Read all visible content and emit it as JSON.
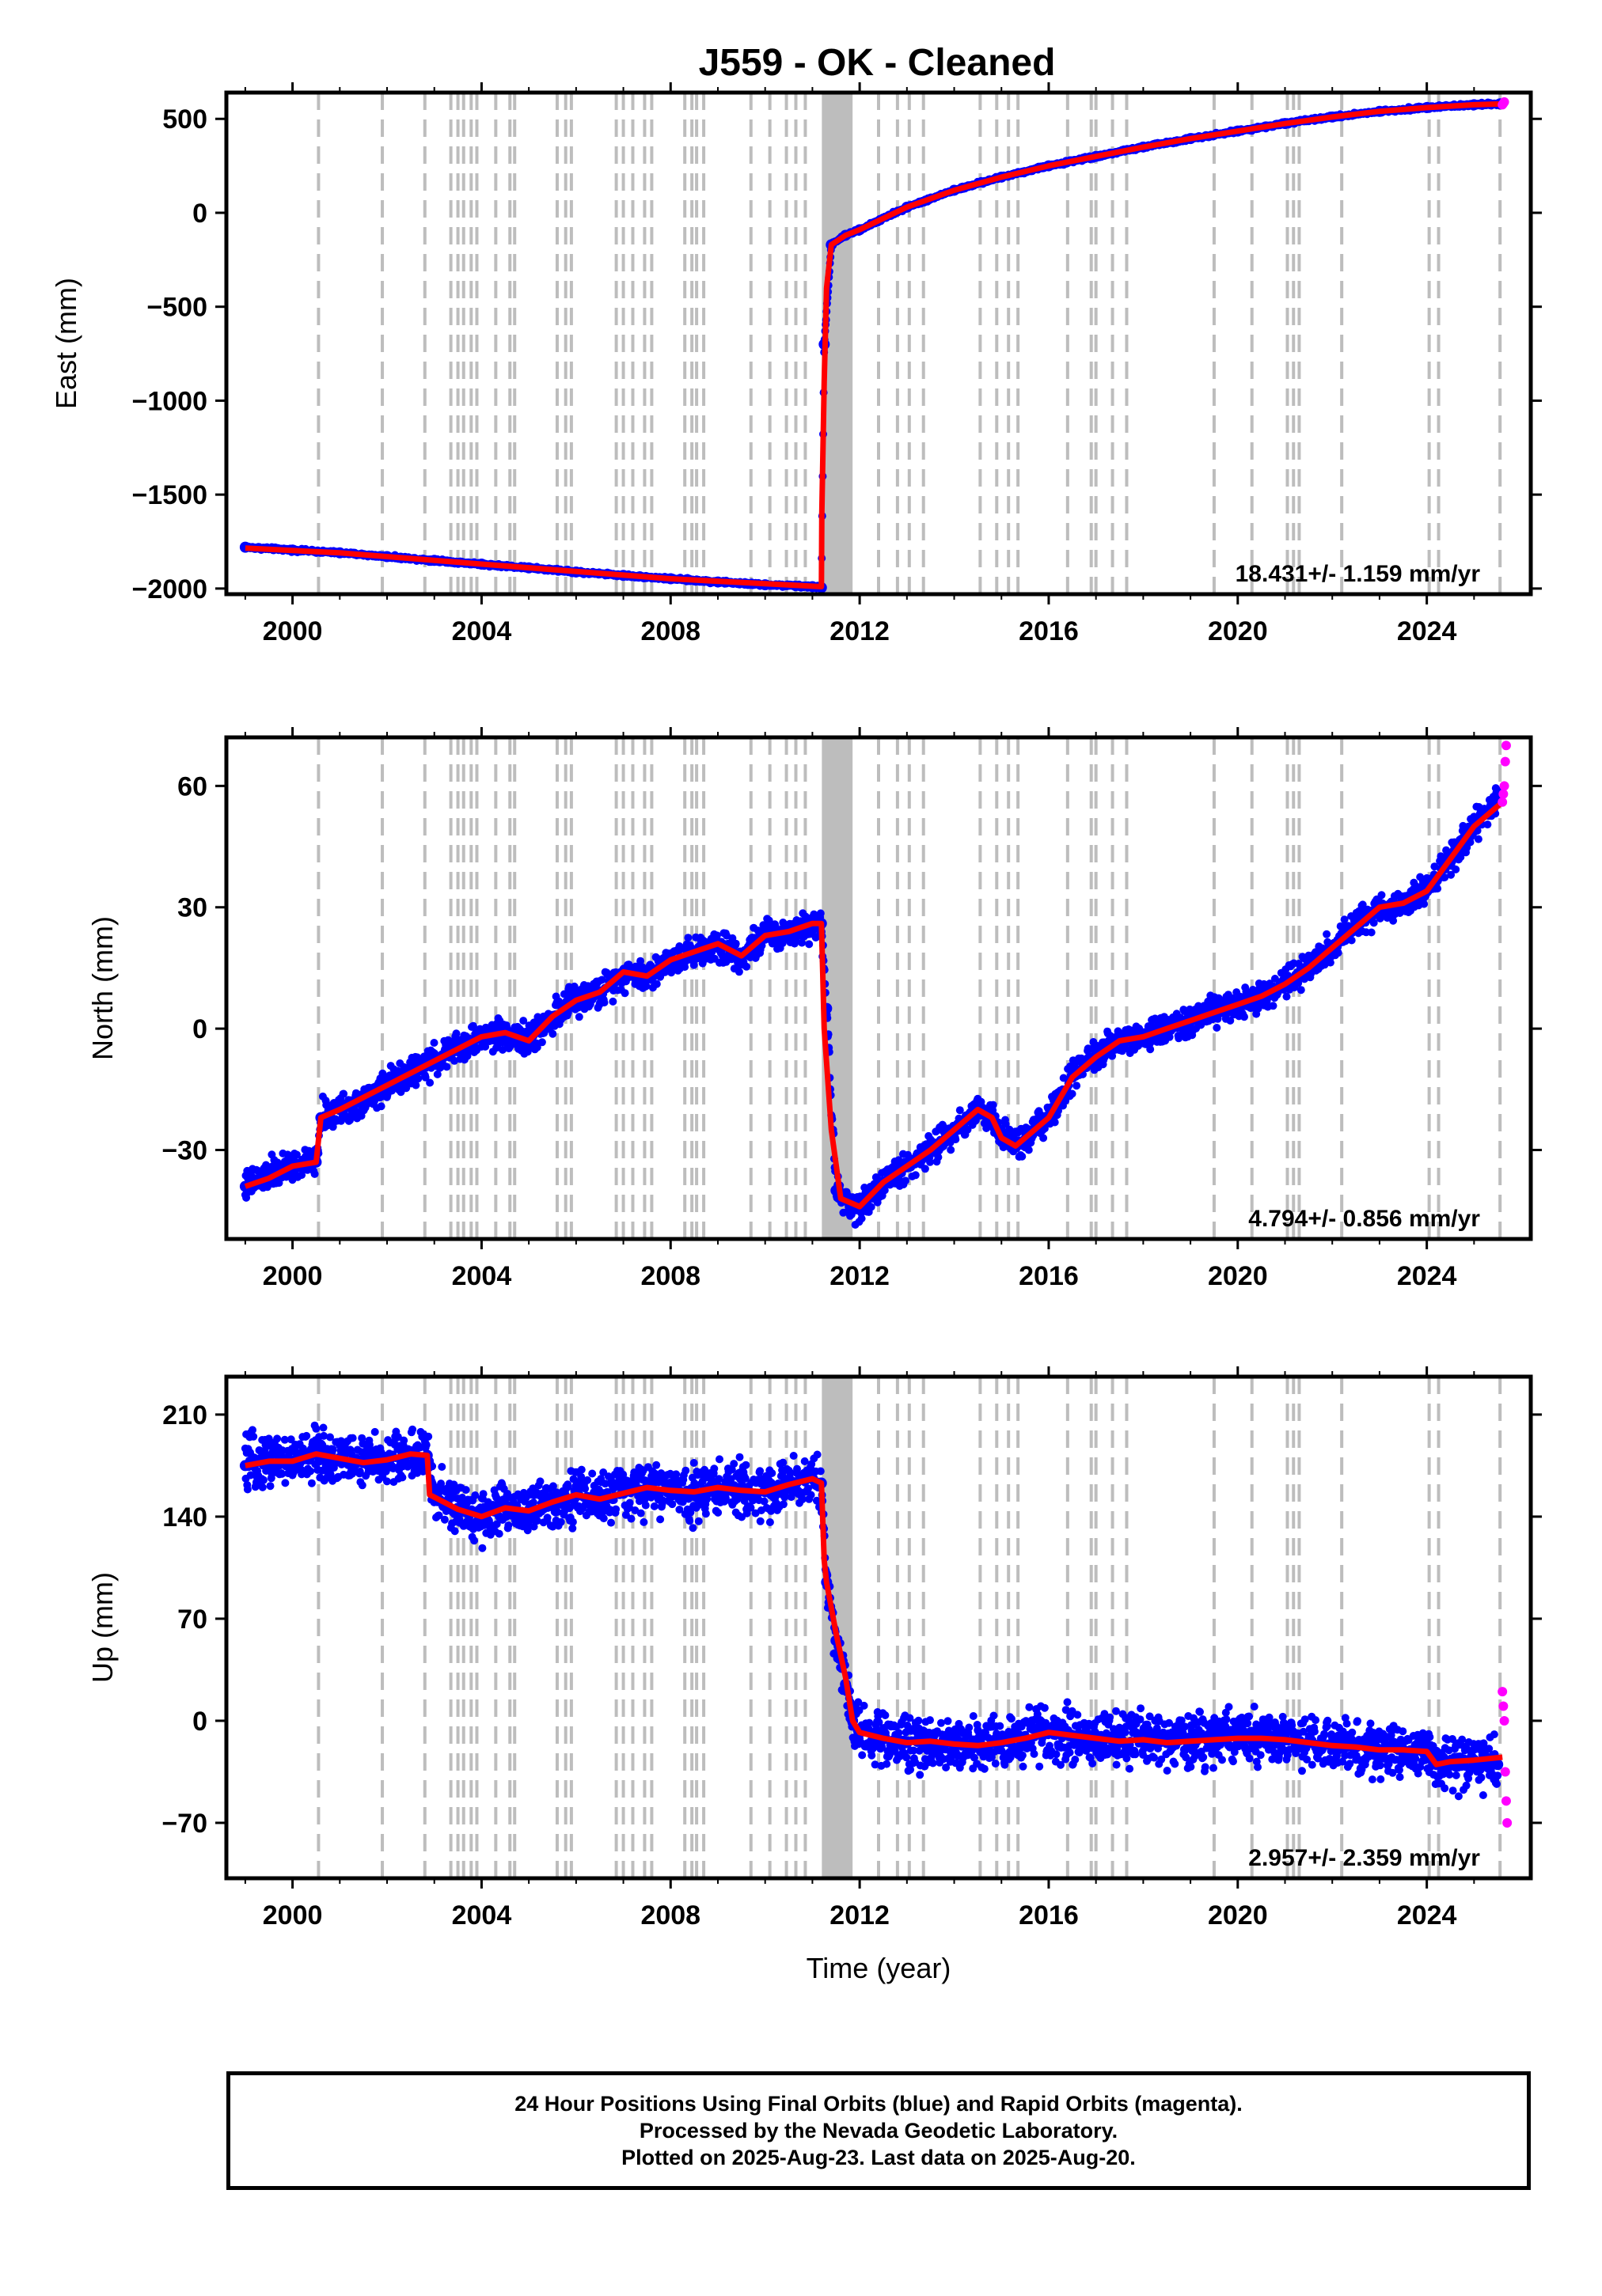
{
  "title": "J559  - OK - Cleaned",
  "colors": {
    "final": "#0000ff",
    "rapid": "#ff00ff",
    "trend": "#ff0000",
    "events": "#bdbdbd"
  },
  "chart_data": [
    {
      "type": "scatter",
      "panel": "east",
      "ylabel": "East (mm)",
      "xlim": [
        1998.6,
        2026.2
      ],
      "ylim": [
        -2030,
        640
      ],
      "xticks": [
        "2000",
        "2004",
        "2008",
        "2012",
        "2016",
        "2020",
        "2024"
      ],
      "yticks": [
        "500",
        "0",
        "-500",
        "-1000",
        "-1500",
        "-2000"
      ],
      "grid": false,
      "series": [
        {
          "name": "Final Orbits",
          "color": "blue",
          "x": [
            1999.0,
            2000.0,
            2001.0,
            2002.0,
            2003.0,
            2004.0,
            2005.0,
            2006.0,
            2007.0,
            2008.0,
            2009.0,
            2010.0,
            2011.0,
            2011.19,
            2011.25,
            2011.4,
            2011.7,
            2012.0,
            2013.0,
            2014.0,
            2015.0,
            2016.0,
            2017.0,
            2018.0,
            2019.0,
            2020.0,
            2021.0,
            2022.0,
            2023.0,
            2024.0,
            2025.0,
            2025.55
          ],
          "y": [
            -1780,
            -1795,
            -1810,
            -1830,
            -1850,
            -1870,
            -1890,
            -1912,
            -1930,
            -1948,
            -1965,
            -1980,
            -1990,
            -1995,
            -700,
            -170,
            -120,
            -90,
            30,
            120,
            190,
            250,
            300,
            350,
            395,
            435,
            475,
            510,
            540,
            560,
            575,
            580
          ]
        },
        {
          "name": "Rapid Orbits",
          "color": "magenta",
          "x": [
            2025.6,
            2025.62,
            2025.64
          ],
          "y": [
            575,
            582,
            590
          ]
        }
      ],
      "trend": {
        "x": [
          1999.0,
          2001.0,
          2004.0,
          2008.0,
          2011.19,
          2011.2,
          2011.25,
          2011.3,
          2011.4,
          2011.7,
          2012.0,
          2013.0,
          2014.0,
          2015.0,
          2016.0,
          2017.0,
          2018.0,
          2019.0,
          2020.0,
          2021.0,
          2022.0,
          2023.0,
          2024.0,
          2025.0,
          2025.6
        ],
        "y": [
          -1785,
          -1810,
          -1870,
          -1948,
          -1990,
          -1600,
          -900,
          -400,
          -170,
          -120,
          -90,
          30,
          120,
          190,
          250,
          300,
          350,
          395,
          435,
          475,
          510,
          540,
          560,
          575,
          580
        ]
      },
      "annotation": "18.431+/- 1.159 mm/yr"
    },
    {
      "type": "scatter",
      "panel": "north",
      "ylabel": "North (mm)",
      "xlim": [
        1998.6,
        2026.2
      ],
      "ylim": [
        -52,
        72
      ],
      "xticks": [
        "2000",
        "2004",
        "2008",
        "2012",
        "2016",
        "2020",
        "2024"
      ],
      "yticks": [
        "60",
        "30",
        "0",
        "-30"
      ],
      "grid": false,
      "series": [
        {
          "name": "Final Orbits",
          "color": "blue",
          "x": [
            1999.0,
            1999.5,
            2000.0,
            2000.5,
            2000.6,
            2001.0,
            2001.5,
            2002.0,
            2002.5,
            2003.0,
            2003.5,
            2004.0,
            2004.5,
            2005.0,
            2005.5,
            2006.0,
            2006.5,
            2007.0,
            2007.5,
            2008.0,
            2008.5,
            2009.0,
            2009.5,
            2010.0,
            2010.5,
            2011.0,
            2011.19,
            2011.3,
            2011.5,
            2011.8,
            2012.0,
            2012.5,
            2013.0,
            2013.5,
            2014.0,
            2014.5,
            2014.8,
            2015.0,
            2015.3,
            2015.6,
            2016.0,
            2016.5,
            2017.0,
            2017.5,
            2018.0,
            2018.5,
            2019.0,
            2019.5,
            2020.0,
            2020.5,
            2021.0,
            2021.5,
            2022.0,
            2022.5,
            2023.0,
            2023.5,
            2024.0,
            2024.5,
            2025.0,
            2025.5
          ],
          "y": [
            -39,
            -36,
            -34,
            -33,
            -22,
            -20,
            -18,
            -14,
            -11,
            -8,
            -5,
            -2,
            -1,
            -3,
            3,
            7,
            9,
            14,
            13,
            17,
            19,
            21,
            18,
            23,
            24,
            26,
            26,
            5,
            -40,
            -44,
            -44,
            -38,
            -34,
            -30,
            -25,
            -20,
            -22,
            -27,
            -29,
            -26,
            -22,
            -12,
            -7,
            -3,
            -2,
            0,
            2,
            4,
            6,
            8,
            11,
            15,
            20,
            25,
            30,
            31,
            34,
            42,
            50,
            56
          ]
        },
        {
          "name": "Rapid Orbits",
          "color": "magenta",
          "x": [
            2025.6,
            2025.62,
            2025.64,
            2025.66,
            2025.68
          ],
          "y": [
            56,
            58,
            60,
            66,
            70
          ]
        }
      ],
      "trend": {
        "x": [
          1999.0,
          1999.5,
          2000.0,
          2000.5,
          2000.6,
          2001.0,
          2001.5,
          2002.0,
          2002.5,
          2003.0,
          2003.5,
          2004.0,
          2004.5,
          2005.0,
          2005.5,
          2006.0,
          2006.5,
          2007.0,
          2007.5,
          2008.0,
          2008.5,
          2009.0,
          2009.5,
          2010.0,
          2010.5,
          2011.0,
          2011.19,
          2011.25,
          2011.4,
          2011.6,
          2012.0,
          2012.5,
          2013.0,
          2013.5,
          2014.0,
          2014.5,
          2014.8,
          2015.0,
          2015.3,
          2015.6,
          2016.0,
          2016.5,
          2017.0,
          2017.5,
          2018.0,
          2018.5,
          2019.0,
          2019.5,
          2020.0,
          2020.5,
          2021.0,
          2021.5,
          2022.0,
          2022.5,
          2023.0,
          2023.5,
          2024.0,
          2024.5,
          2025.0,
          2025.6
        ],
        "y": [
          -39,
          -37,
          -34,
          -33,
          -22,
          -20,
          -17,
          -14,
          -11,
          -8,
          -5,
          -2,
          -1,
          -3,
          3,
          7,
          9,
          14,
          13,
          17,
          19,
          21,
          18,
          23,
          24,
          26,
          26,
          0,
          -25,
          -42,
          -44,
          -38,
          -34,
          -30,
          -25,
          -20,
          -22,
          -27,
          -29,
          -26,
          -22,
          -12,
          -7,
          -3,
          -2,
          0,
          2,
          4,
          6,
          8,
          11,
          15,
          20,
          25,
          30,
          31,
          34,
          42,
          50,
          56
        ]
      },
      "annotation": "4.794+/- 0.856 mm/yr"
    },
    {
      "type": "scatter",
      "panel": "up",
      "ylabel": "Up (mm)",
      "xlim": [
        1998.6,
        2026.2
      ],
      "ylim": [
        -108,
        236
      ],
      "xticks": [
        "2000",
        "2004",
        "2008",
        "2012",
        "2016",
        "2020",
        "2024"
      ],
      "yticks": [
        "210",
        "140",
        "70",
        "0",
        "-70"
      ],
      "grid": false,
      "series": [
        {
          "name": "Final Orbits",
          "color": "blue",
          "x": [
            1999.0,
            1999.5,
            2000.0,
            2000.5,
            2001.0,
            2001.5,
            2002.0,
            2002.5,
            2002.85,
            2003.0,
            2003.5,
            2004.0,
            2004.5,
            2005.0,
            2005.5,
            2006.0,
            2006.5,
            2007.0,
            2007.5,
            2008.0,
            2008.5,
            2009.0,
            2009.5,
            2010.0,
            2010.5,
            2011.0,
            2011.19,
            2011.3,
            2011.5,
            2011.7,
            2011.85,
            2012.0,
            2012.5,
            2013.0,
            2013.5,
            2014.0,
            2014.5,
            2015.0,
            2015.5,
            2016.0,
            2016.5,
            2017.0,
            2017.5,
            2018.0,
            2018.5,
            2019.0,
            2019.5,
            2020.0,
            2020.5,
            2021.0,
            2021.5,
            2022.0,
            2022.5,
            2023.0,
            2023.5,
            2024.0,
            2024.2,
            2024.5,
            2025.0,
            2025.5
          ],
          "y": [
            175,
            180,
            178,
            183,
            180,
            177,
            179,
            183,
            182,
            155,
            145,
            140,
            146,
            144,
            150,
            155,
            152,
            156,
            160,
            158,
            157,
            160,
            158,
            157,
            162,
            166,
            163,
            95,
            55,
            25,
            0,
            -8,
            -12,
            -15,
            -14,
            -16,
            -17,
            -15,
            -12,
            -8,
            -10,
            -12,
            -14,
            -13,
            -15,
            -14,
            -13,
            -12,
            -12,
            -13,
            -15,
            -17,
            -18,
            -20,
            -20,
            -21,
            -30,
            -28,
            -27,
            -30
          ]
        },
        {
          "name": "Rapid Orbits",
          "color": "magenta",
          "x": [
            2025.6,
            2025.62,
            2025.64,
            2025.66,
            2025.68,
            2025.7
          ],
          "y": [
            20,
            10,
            0,
            -35,
            -55,
            -70
          ]
        }
      ],
      "trend": {
        "x": [
          1999.0,
          1999.5,
          2000.0,
          2000.5,
          2001.0,
          2001.5,
          2002.0,
          2002.5,
          2002.85,
          2002.9,
          2003.5,
          2004.0,
          2004.5,
          2005.0,
          2005.5,
          2006.0,
          2006.5,
          2007.0,
          2007.5,
          2008.0,
          2008.5,
          2009.0,
          2009.5,
          2010.0,
          2010.5,
          2011.0,
          2011.19,
          2011.25,
          2011.3,
          2011.5,
          2011.7,
          2011.85,
          2012.0,
          2012.5,
          2013.0,
          2013.5,
          2014.0,
          2014.5,
          2015.0,
          2015.5,
          2016.0,
          2016.5,
          2017.0,
          2017.5,
          2018.0,
          2018.5,
          2019.0,
          2019.5,
          2020.0,
          2020.5,
          2021.0,
          2021.5,
          2022.0,
          2022.5,
          2023.0,
          2023.5,
          2024.0,
          2024.2,
          2024.5,
          2025.0,
          2025.6
        ],
        "y": [
          175,
          178,
          178,
          183,
          180,
          177,
          179,
          183,
          182,
          155,
          145,
          140,
          146,
          144,
          150,
          155,
          152,
          156,
          160,
          158,
          157,
          160,
          158,
          157,
          162,
          166,
          163,
          110,
          95,
          60,
          30,
          0,
          -8,
          -12,
          -15,
          -14,
          -16,
          -17,
          -15,
          -12,
          -8,
          -10,
          -12,
          -14,
          -13,
          -15,
          -14,
          -13,
          -12,
          -12,
          -13,
          -15,
          -17,
          -18,
          -20,
          -20,
          -21,
          -30,
          -28,
          -27,
          -25
        ]
      },
      "annotation": "2.957+/- 2.359 mm/yr",
      "xlabel": "Time (year)"
    }
  ],
  "event_lines": [
    2000.55,
    2001.9,
    2002.8,
    2003.35,
    2003.5,
    2003.62,
    2003.78,
    2003.9,
    2004.3,
    2004.6,
    2004.7,
    2005.6,
    2005.78,
    2005.9,
    2006.85,
    2007.0,
    2007.2,
    2007.45,
    2007.6,
    2008.3,
    2008.45,
    2008.55,
    2008.7,
    2009.7,
    2010.1,
    2010.45,
    2010.65,
    2010.85,
    2012.4,
    2012.8,
    2013.05,
    2013.35,
    2014.55,
    2014.9,
    2015.15,
    2015.35,
    2016.4,
    2016.9,
    2017.0,
    2017.35,
    2017.65,
    2019.5,
    2020.3,
    2021.05,
    2021.18,
    2021.3,
    2022.2,
    2024.05,
    2024.25,
    2025.55
  ],
  "event_band": [
    2011.2,
    2011.85
  ],
  "footer": {
    "line1": "24 Hour Positions Using Final Orbits (blue) and Rapid Orbits (magenta).",
    "line2": "Processed by the Nevada Geodetic Laboratory.",
    "line3": "Plotted on 2025-Aug-23. Last data on 2025-Aug-20."
  }
}
